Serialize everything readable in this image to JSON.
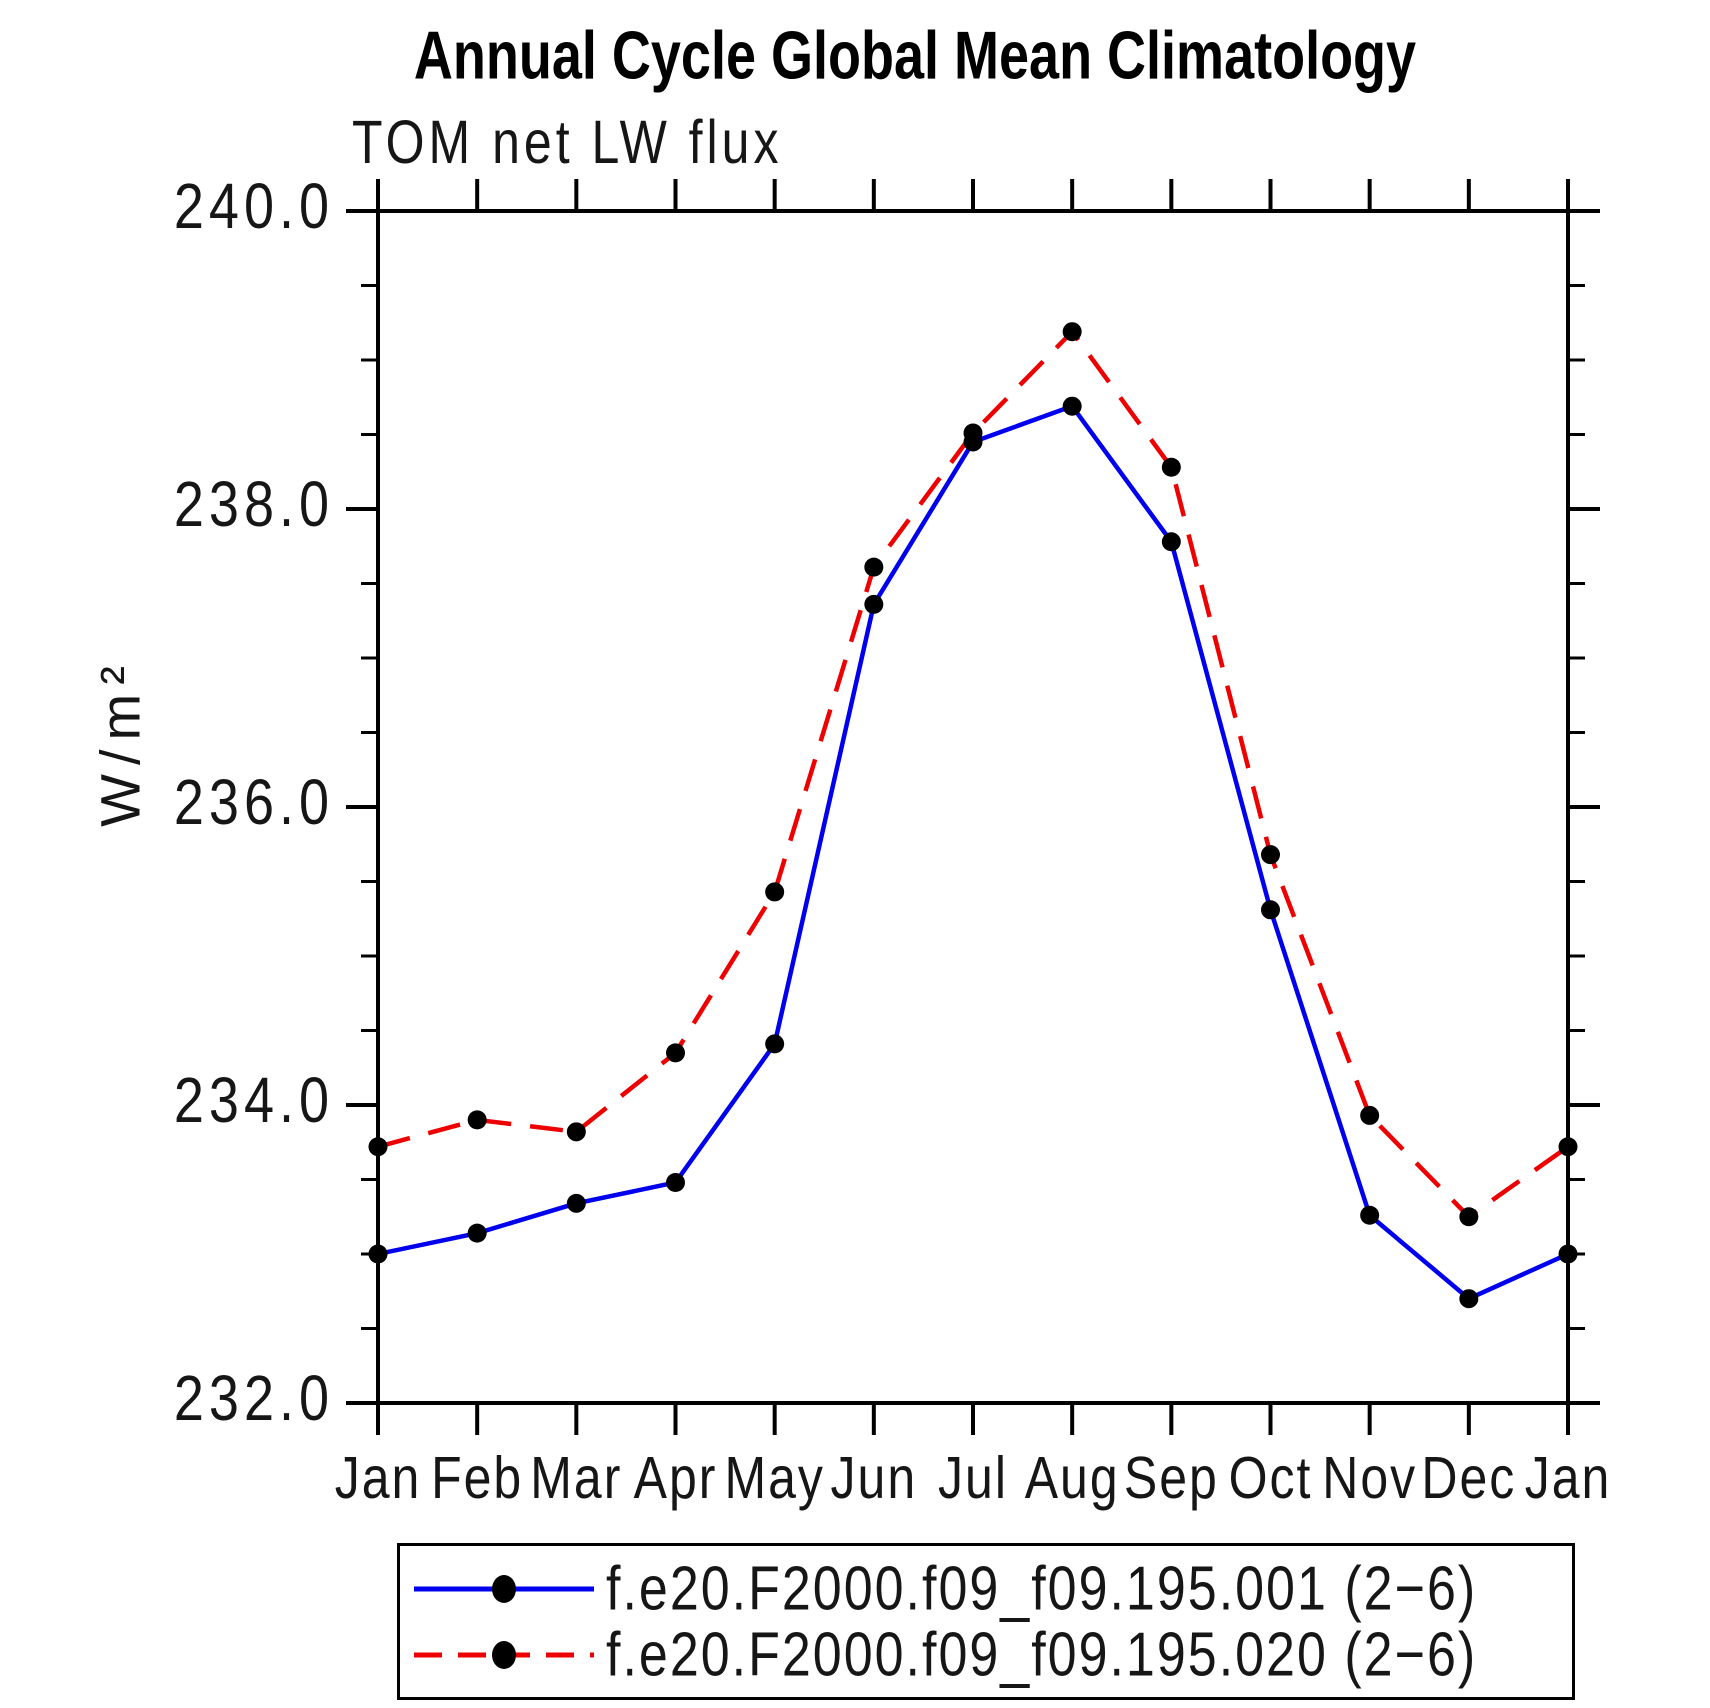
{
  "chart_data": {
    "type": "line",
    "title": "Annual Cycle Global Mean Climatology",
    "subtitle": "TOM net LW flux",
    "ylabel": "W/m²",
    "x": [
      "Jan",
      "Feb",
      "Mar",
      "Apr",
      "May",
      "Jun",
      "Jul",
      "Aug",
      "Sep",
      "Oct",
      "Nov",
      "Dec",
      "Jan"
    ],
    "ylim": [
      232.0,
      240.0
    ],
    "yticks_major": [
      232.0,
      234.0,
      236.0,
      238.0,
      240.0
    ],
    "ytick_labels": [
      "232.0",
      "234.0",
      "236.0",
      "238.0",
      "240.0"
    ],
    "ytick_minor_interval": 0.5,
    "grid": false,
    "legend_position": "bottom-box",
    "series": [
      {
        "name": "f.e20.F2000.f09_f09.195.001 (2−6)",
        "color": "#0000ee",
        "style": "solid",
        "marker": "circle",
        "marker_color": "#000000",
        "values": [
          233.0,
          233.14,
          233.34,
          233.48,
          234.41,
          237.36,
          238.45,
          238.69,
          237.78,
          235.31,
          233.26,
          232.7,
          233.0
        ]
      },
      {
        "name": "f.e20.F2000.f09_f09.195.020 (2−6)",
        "color": "#ee0000",
        "style": "dashed",
        "marker": "circle",
        "marker_color": "#000000",
        "values": [
          233.72,
          233.9,
          233.82,
          234.35,
          235.43,
          237.61,
          238.51,
          239.19,
          238.28,
          235.68,
          233.93,
          233.25,
          233.72
        ]
      }
    ]
  },
  "colors": {
    "axis": "#000000",
    "background": "#ffffff",
    "series1": "#0000ee",
    "series2": "#ee0000",
    "marker": "#000000"
  }
}
